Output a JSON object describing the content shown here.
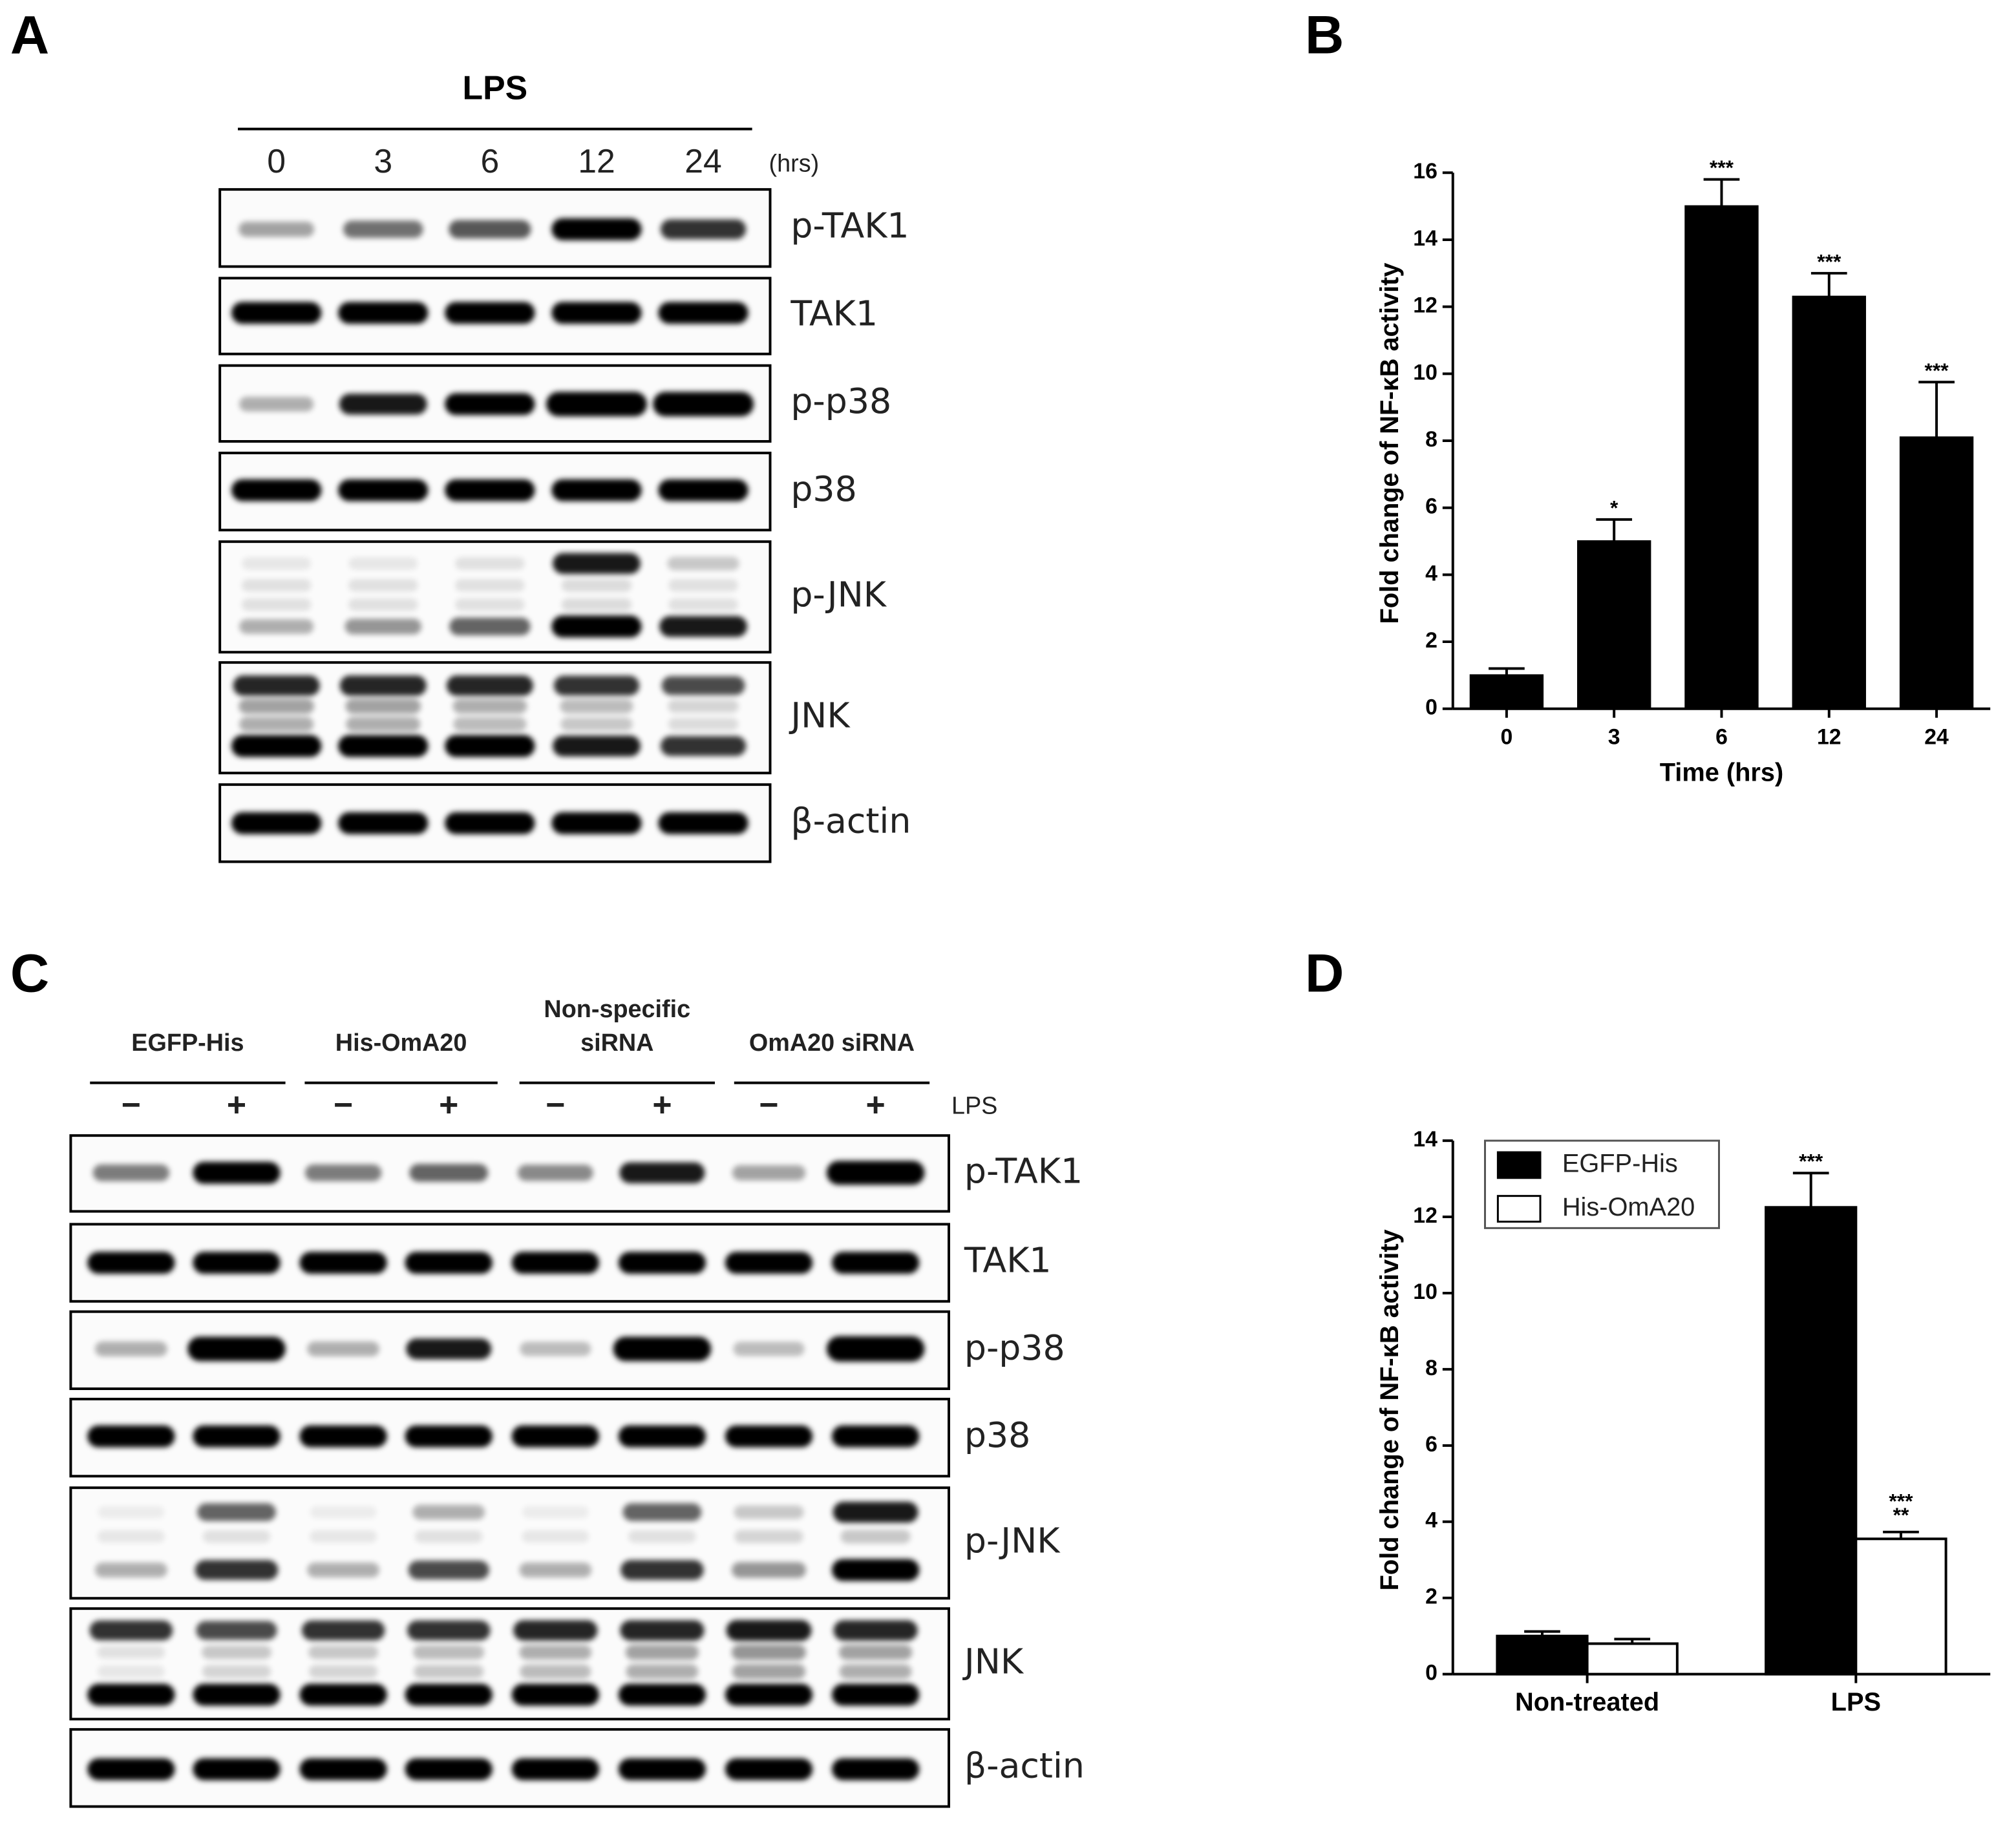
{
  "panel_a": {
    "letter": "A",
    "title": "LPS",
    "lanes": [
      "0",
      "3",
      "6",
      "12",
      "24"
    ],
    "unit": "(hrs)",
    "rows": [
      "p-TAK1",
      "TAK1",
      "p-p38",
      "p38",
      "p-JNK",
      "JNK",
      "β-actin"
    ]
  },
  "panel_c": {
    "letter": "C",
    "groups": [
      [
        "EGFP-His"
      ],
      [
        "His-OmA20"
      ],
      [
        "Non-specific",
        "siRNA"
      ],
      [
        "OmA20 siRNA"
      ]
    ],
    "signs": [
      "−",
      "+",
      "−",
      "+",
      "−",
      "+",
      "−",
      "+"
    ],
    "treatment": "LPS",
    "rows": [
      "p-TAK1",
      "TAK1",
      "p-p38",
      "p38",
      "p-JNK",
      "JNK",
      "β-actin"
    ]
  },
  "chart_data": [
    {
      "letter": "B",
      "type": "bar",
      "x_label": "Time (hrs)",
      "y_label": "Fold change of NF-κB activity",
      "categories": [
        "0",
        "3",
        "6",
        "12",
        "24"
      ],
      "values": [
        1.0,
        5.0,
        15.0,
        12.3,
        8.1
      ],
      "errors": [
        0.2,
        0.65,
        0.8,
        0.7,
        1.65
      ],
      "annotations": [
        null,
        [
          "*"
        ],
        [
          "***"
        ],
        [
          "***"
        ],
        [
          "***"
        ]
      ],
      "color": "#000000",
      "ylim": [
        0,
        16
      ],
      "yticks": [
        0,
        2,
        4,
        6,
        8,
        10,
        12,
        14,
        16
      ]
    },
    {
      "letter": "D",
      "type": "grouped_bar",
      "y_label": "Fold change of NF-κB activity",
      "categories": [
        "Non-treated",
        "LPS"
      ],
      "series": [
        {
          "name": "EGFP-His",
          "color": "#000000",
          "values": [
            1.0,
            12.25
          ],
          "errors": [
            0.12,
            0.9
          ],
          "annotations": [
            null,
            [
              "***"
            ]
          ]
        },
        {
          "name": "His-OmA20",
          "color": "#ffffff",
          "values": [
            0.8,
            3.55
          ],
          "errors": [
            0.12,
            0.18
          ],
          "annotations": [
            null,
            [
              "***",
              "**"
            ]
          ]
        }
      ],
      "legend": "upper left",
      "ylim": [
        0,
        14
      ],
      "yticks": [
        0,
        2,
        4,
        6,
        8,
        10,
        12,
        14
      ]
    }
  ]
}
